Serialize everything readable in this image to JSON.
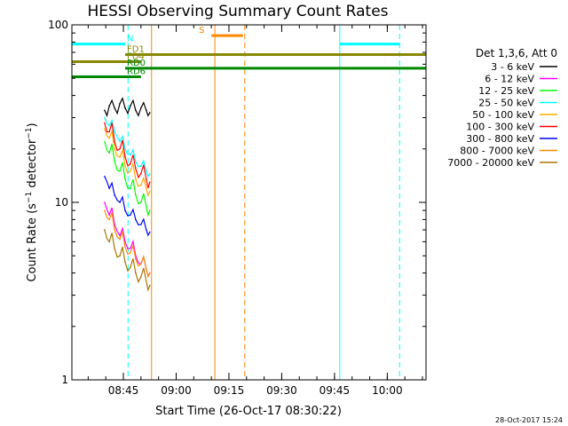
{
  "chart_data": {
    "type": "line",
    "title": "HESSI Observing Summary Count Rates",
    "xlabel": "Start Time (26-Oct-17 08:30:22)",
    "ylabel": "Count Rate (s⁻¹ detector⁻¹)",
    "ylabel_main": "Count Rate (s",
    "ylabel_sup1": "−1",
    "ylabel_mid": " detector",
    "ylabel_sup2": "−1",
    "ylabel_end": ")",
    "y_scale": "log",
    "ylim": [
      1,
      100
    ],
    "xlim": [
      "08:30:22",
      "10:11:00"
    ],
    "x_ticks": [
      "08:45",
      "09:00",
      "09:15",
      "09:30",
      "09:45",
      "10:00"
    ],
    "y_ticks": [
      "1",
      "10",
      "100"
    ],
    "timestamp": "28-Oct-2017 15:24",
    "legend": {
      "placement": "right",
      "header": "Det 1,3,6, Att 0"
    },
    "series": [
      {
        "name": "3 - 6 keV",
        "color": "#000000",
        "x": [
          "08:39:40",
          "08:41:00",
          "08:42:30",
          "08:44:00",
          "08:45:30",
          "08:47:00",
          "08:48:30",
          "08:50:00",
          "08:51:30",
          "08:52:30"
        ],
        "y": [
          33,
          35,
          34,
          36,
          34,
          35,
          33,
          34,
          33,
          32
        ]
      },
      {
        "name": "6 - 12 keV",
        "color": "#ff00ff",
        "x": [
          "08:39:40",
          "08:41:00",
          "08:42:30",
          "08:44:00",
          "08:45:30",
          "08:47:00",
          "08:48:30",
          "08:50:00",
          "08:51:30",
          "08:52:30"
        ],
        "y": [
          10,
          8.5,
          7.5,
          6.5,
          6,
          5.5,
          5,
          4.5,
          4.2,
          4
        ]
      },
      {
        "name": "12 - 25 keV",
        "color": "#00ff00",
        "x": [
          "08:39:40",
          "08:41:00",
          "08:42:30",
          "08:44:00",
          "08:45:30",
          "08:47:00",
          "08:48:30",
          "08:50:00",
          "08:51:30",
          "08:52:30"
        ],
        "y": [
          22,
          19,
          17,
          15,
          13.5,
          12,
          11,
          10,
          9.5,
          9
        ]
      },
      {
        "name": "25 - 50 keV",
        "color": "#00ffff",
        "x": [
          "08:39:40",
          "08:41:00",
          "08:42:30",
          "08:44:00",
          "08:45:30",
          "08:47:00",
          "08:48:30",
          "08:50:00",
          "08:51:30",
          "08:52:30"
        ],
        "y": [
          30,
          27,
          25,
          22,
          20,
          18.5,
          17,
          16,
          15,
          14.5
        ]
      },
      {
        "name": "50 - 100 keV",
        "color": "#ffaa00",
        "x": [
          "08:39:40",
          "08:41:00",
          "08:42:30",
          "08:44:00",
          "08:45:30",
          "08:47:00",
          "08:48:30",
          "08:50:00",
          "08:51:30",
          "08:52:30"
        ],
        "y": [
          26,
          23,
          20,
          18,
          16,
          15,
          13.5,
          12.5,
          12,
          11.5
        ]
      },
      {
        "name": "100 - 300 keV",
        "color": "#ff0000",
        "x": [
          "08:39:40",
          "08:41:00",
          "08:42:30",
          "08:44:00",
          "08:45:30",
          "08:47:00",
          "08:48:30",
          "08:50:00",
          "08:51:30",
          "08:52:30"
        ],
        "y": [
          28,
          25,
          22,
          20,
          18,
          16.5,
          15.5,
          14.5,
          13.5,
          13
        ]
      },
      {
        "name": "300 - 800 keV",
        "color": "#0000ff",
        "x": [
          "08:39:40",
          "08:41:00",
          "08:42:30",
          "08:44:00",
          "08:45:30",
          "08:47:00",
          "08:48:30",
          "08:50:00",
          "08:51:30",
          "08:52:30"
        ],
        "y": [
          14,
          12,
          11,
          10,
          9,
          8.5,
          8,
          7.5,
          7,
          6.8
        ]
      },
      {
        "name": "800 - 7000 keV",
        "color": "#ff8800",
        "x": [
          "08:39:40",
          "08:41:00",
          "08:42:30",
          "08:44:00",
          "08:45:30",
          "08:47:00",
          "08:48:30",
          "08:50:00",
          "08:51:30",
          "08:52:30"
        ],
        "y": [
          9,
          8,
          7,
          6.2,
          5.6,
          5.2,
          4.8,
          4.5,
          4.2,
          4
        ]
      },
      {
        "name": "7000 - 20000 keV",
        "color": "#aa7700",
        "x": [
          "08:39:40",
          "08:41:00",
          "08:42:30",
          "08:44:00",
          "08:45:30",
          "08:47:00",
          "08:48:30",
          "08:50:00",
          "08:51:30",
          "08:52:30"
        ],
        "y": [
          7,
          6,
          5.5,
          5,
          4.6,
          4.3,
          4,
          3.8,
          3.6,
          3.4
        ]
      }
    ],
    "flag_bars": [
      {
        "name": "N",
        "color": "#00ffff",
        "segments": [
          [
            "08:30:22",
            "08:45:30"
          ],
          [
            "09:46:30",
            "10:03:30"
          ]
        ],
        "y": 78
      },
      {
        "name": "S",
        "color": "#ff8800",
        "segments": [
          [
            "09:10:00",
            "09:19:00"
          ]
        ],
        "y": 87
      },
      {
        "name": "FD1",
        "color": "#888800",
        "segments": [
          [
            "08:45:30",
            "10:11:00"
          ]
        ],
        "y": 68
      },
      {
        "name": "FD4",
        "color": "#888800",
        "segments": [
          [
            "08:30:22",
            "08:50:00"
          ]
        ],
        "y": 62
      },
      {
        "name": "RD0",
        "color": "#008800",
        "segments": [
          [
            "08:45:30",
            "10:11:00"
          ]
        ],
        "y": 57
      },
      {
        "name": "RD6",
        "color": "#008800",
        "segments": [
          [
            "08:30:22",
            "08:50:00"
          ]
        ],
        "y": 51
      }
    ],
    "vlines": [
      {
        "time": "08:30:22",
        "color": "#00ffff",
        "style": "solid"
      },
      {
        "time": "08:46:20",
        "color": "#00ffff",
        "style": "dashed"
      },
      {
        "time": "09:11:00",
        "color": "#ff8800",
        "style": "solid"
      },
      {
        "time": "09:19:30",
        "color": "#ff8800",
        "style": "dashed"
      },
      {
        "time": "09:46:30",
        "color": "#00ffff",
        "style": "solid"
      },
      {
        "time": "10:03:30",
        "color": "#00ffff",
        "style": "dashed"
      },
      {
        "time": "08:53:00",
        "color": "#ff8800",
        "style": "solid"
      }
    ]
  }
}
